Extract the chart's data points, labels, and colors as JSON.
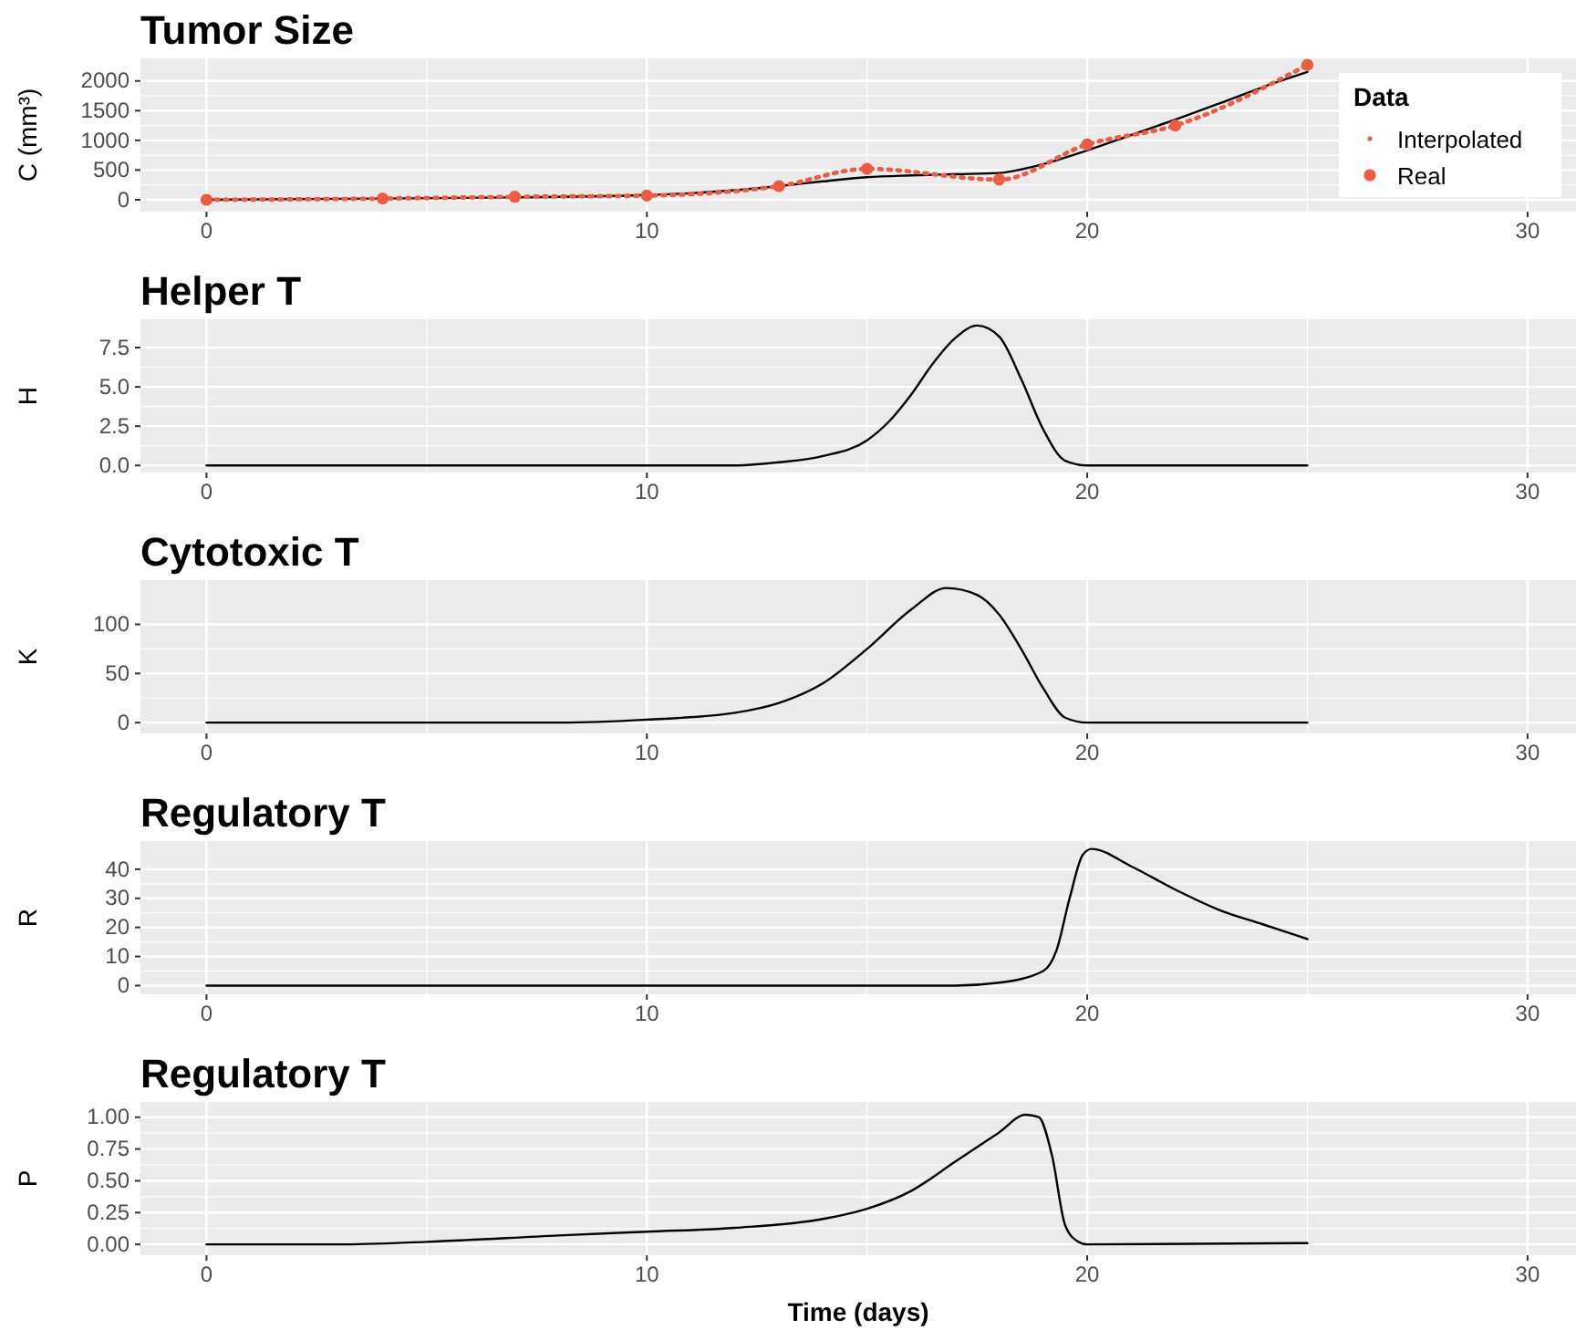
{
  "chart_data": [
    {
      "type": "line",
      "title": "Tumor Size",
      "ylabel": "C (mm³)",
      "xlim": [
        -1.5,
        31.1
      ],
      "xticks": [
        0,
        10,
        20,
        30
      ],
      "ylim": [
        -200,
        2380
      ],
      "yticks": [
        0,
        500,
        1000,
        1500,
        2000
      ],
      "grid": true,
      "legend": "right",
      "legend_title": "Data",
      "series": [
        {
          "color": "#000000",
          "x": [
            0,
            4,
            7,
            10,
            12,
            13,
            14,
            15,
            16,
            17,
            18,
            18.5,
            19,
            20,
            21,
            22,
            23,
            24,
            25
          ],
          "values": [
            0,
            20,
            40,
            80,
            160,
            230,
            310,
            380,
            410,
            430,
            450,
            510,
            600,
            830,
            1090,
            1350,
            1620,
            1900,
            2150
          ]
        },
        {
          "name": "Interpolated",
          "color": "#ef5b40",
          "line_style": "dotted",
          "x": [
            0,
            4,
            7,
            10,
            13,
            15,
            18,
            20,
            22,
            25
          ],
          "values": [
            0,
            20,
            50,
            70,
            230,
            520,
            340,
            930,
            1250,
            2270
          ]
        },
        {
          "type": "scatter",
          "name": "Real",
          "color": "#ef5b40",
          "marker": "circle",
          "x": [
            0,
            4,
            7,
            10,
            13,
            15,
            18,
            20,
            22,
            25
          ],
          "values": [
            0,
            20,
            50,
            70,
            230,
            520,
            340,
            930,
            1250,
            2270
          ]
        }
      ]
    },
    {
      "type": "line",
      "title": "Helper T",
      "ylabel": "H",
      "xlim": [
        -1.5,
        31.1
      ],
      "xticks": [
        0,
        10,
        20,
        30
      ],
      "ylim": [
        -0.45,
        9.3
      ],
      "yticks": [
        {
          "value": 0,
          "label": "0.0"
        },
        2.5,
        {
          "value": 5,
          "label": "5.0"
        },
        7.5
      ],
      "grid": true,
      "series": [
        {
          "color": "#000000",
          "x": [
            0,
            10,
            12,
            13,
            14,
            15,
            15.5,
            16,
            16.5,
            17,
            17.5,
            18,
            18.5,
            19,
            19.5,
            20,
            25
          ],
          "values": [
            0,
            0,
            0,
            0.2,
            0.6,
            1.6,
            2.8,
            4.5,
            6.5,
            8.1,
            8.9,
            8.2,
            5.5,
            2.3,
            0.3,
            0,
            0
          ]
        }
      ]
    },
    {
      "type": "line",
      "title": "Cytotoxic T",
      "ylabel": "K",
      "xlim": [
        -1.5,
        31.1
      ],
      "xticks": [
        0,
        10,
        20,
        30
      ],
      "ylim": [
        -11,
        145
      ],
      "yticks": [
        0,
        50,
        100
      ],
      "grid": true,
      "series": [
        {
          "color": "#000000",
          "x": [
            0,
            6,
            8,
            10,
            12,
            13,
            14,
            15,
            16,
            16.8,
            17.5,
            18,
            18.5,
            19,
            19.5,
            20,
            25
          ],
          "values": [
            0,
            0,
            0,
            3,
            10,
            20,
            40,
            75,
            115,
            137,
            130,
            110,
            75,
            35,
            5,
            0,
            0
          ]
        }
      ]
    },
    {
      "type": "line",
      "title": "Regulatory T",
      "ylabel": "R",
      "xlim": [
        -1.5,
        31.1
      ],
      "xticks": [
        0,
        10,
        20,
        30
      ],
      "ylim": [
        -3,
        49.7
      ],
      "yticks": [
        0,
        10,
        20,
        30,
        40
      ],
      "grid": true,
      "series": [
        {
          "color": "#000000",
          "x": [
            0,
            15,
            17,
            18,
            19,
            19.3,
            19.6,
            19.9,
            20.1,
            21,
            22,
            23,
            24,
            25
          ],
          "values": [
            0,
            0,
            0,
            1,
            5,
            12,
            30,
            45,
            47,
            41,
            33,
            26,
            21,
            16
          ]
        }
      ]
    },
    {
      "type": "line",
      "title": "Regulatory T",
      "ylabel": "P",
      "xlabel": "Time (days)",
      "xlim": [
        -1.5,
        31.1
      ],
      "xticks": [
        0,
        10,
        20,
        30
      ],
      "ylim": [
        -0.085,
        1.12
      ],
      "yticks": [
        {
          "value": 0,
          "label": "0.00"
        },
        0.25,
        {
          "value": 0.5,
          "label": "0.50"
        },
        0.75,
        {
          "value": 1,
          "label": "1.00"
        }
      ],
      "grid": true,
      "series": [
        {
          "color": "#000000",
          "x": [
            0,
            3,
            5,
            8,
            10,
            12,
            14,
            15,
            16,
            17,
            18,
            18.6,
            18.9,
            19.2,
            19.5,
            19.8,
            20,
            25
          ],
          "values": [
            0,
            0,
            0.02,
            0.07,
            0.1,
            0.13,
            0.2,
            0.28,
            0.42,
            0.65,
            0.88,
            1.02,
            1.0,
            0.7,
            0.15,
            0.02,
            0,
            0.01
          ]
        }
      ]
    }
  ]
}
